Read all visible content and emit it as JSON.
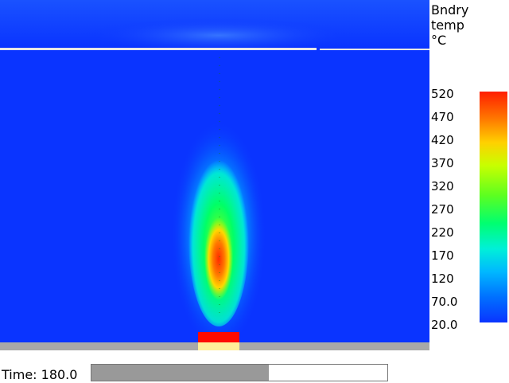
{
  "legend": {
    "title_lines": [
      "Bndry",
      "temp",
      "°C"
    ],
    "ticks": [
      "520",
      "470",
      "420",
      "370",
      "320",
      "270",
      "220",
      "170",
      "120",
      "70.0",
      "20.0"
    ]
  },
  "colors": {
    "background_field": "#0a34ff",
    "floor": "#a8a8a8",
    "burner_hot": "#ff0a00",
    "burner_base": "#ffee99",
    "ceiling_line": "#e6e6e6",
    "progress_fill": "#999999"
  },
  "status": {
    "time_text": "Time: 180.0",
    "progress_fraction": 0.6
  }
}
